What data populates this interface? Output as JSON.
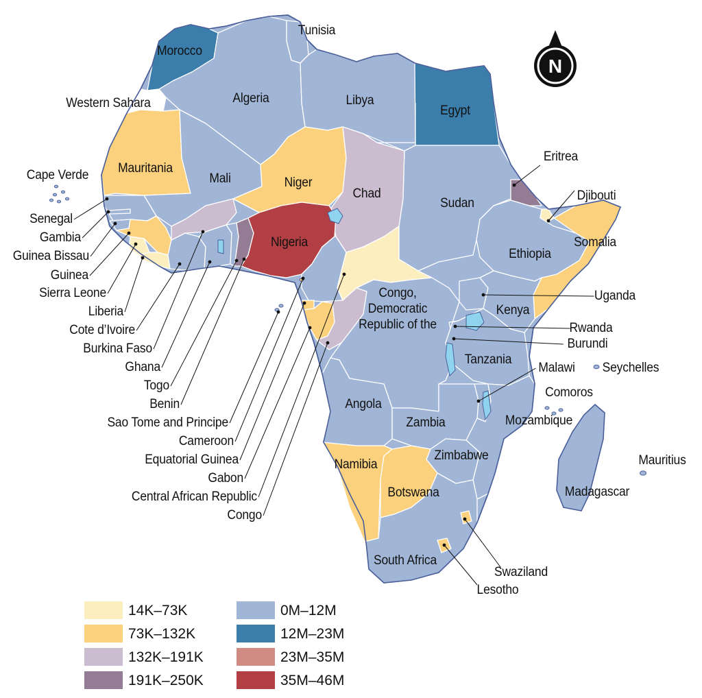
{
  "colors": {
    "ocean": "#ffffff",
    "border": "#ffffff",
    "coast": "#4a5f9a",
    "lake": "#8fd3ee",
    "leader": "#111111",
    "compass_ring": "#ffffff",
    "compass_fill": "#111111"
  },
  "compass": {
    "letter": "N",
    "icon": "north-arrow-icon"
  },
  "legend": {
    "items": [
      {
        "label": "14K–73K",
        "color": "#fdeec0"
      },
      {
        "label": "73K–132K",
        "color": "#fbd17e"
      },
      {
        "label": "132K–191K",
        "color": "#cbbcd0"
      },
      {
        "label": "191K–250K",
        "color": "#957c95"
      },
      {
        "label": "0M–12M",
        "color": "#a1b6d6"
      },
      {
        "label": "12M–23M",
        "color": "#3b7eab"
      },
      {
        "label": "23M–35M",
        "color": "#d08b83"
      },
      {
        "label": "35M–46M",
        "color": "#b13f43"
      }
    ]
  },
  "countries": [
    {
      "name": "Tunisia",
      "category": "0M–12M",
      "color": "#a1b6d6"
    },
    {
      "name": "Morocco",
      "category": "12M–23M",
      "color": "#3b7eab"
    },
    {
      "name": "Western Sahara",
      "category": "none",
      "color": "#ffffff"
    },
    {
      "name": "Algeria",
      "category": "0M–12M",
      "color": "#a1b6d6"
    },
    {
      "name": "Libya",
      "category": "0M–12M",
      "color": "#a1b6d6"
    },
    {
      "name": "Egypt",
      "category": "12M–23M",
      "color": "#3b7eab"
    },
    {
      "name": "Mauritania",
      "category": "73K–132K",
      "color": "#fbd17e"
    },
    {
      "name": "Mali",
      "category": "0M–12M",
      "color": "#a1b6d6"
    },
    {
      "name": "Niger",
      "category": "73K–132K",
      "color": "#fbd17e"
    },
    {
      "name": "Chad",
      "category": "132K–191K",
      "color": "#cbbcd0"
    },
    {
      "name": "Sudan",
      "category": "0M–12M",
      "color": "#a1b6d6"
    },
    {
      "name": "Eritrea",
      "category": "191K–250K",
      "color": "#957c95"
    },
    {
      "name": "Djibouti",
      "category": "14K–73K",
      "color": "#fdeec0"
    },
    {
      "name": "Somalia",
      "category": "73K–132K",
      "color": "#fbd17e"
    },
    {
      "name": "Ethiopia",
      "category": "0M–12M",
      "color": "#a1b6d6"
    },
    {
      "name": "Nigeria",
      "category": "35M–46M",
      "color": "#b13f43"
    },
    {
      "name": "Cape Verde",
      "category": "0M–12M",
      "color": "#a1b6d6"
    },
    {
      "name": "Senegal",
      "category": "0M–12M",
      "color": "#a1b6d6"
    },
    {
      "name": "Gambia",
      "category": "0M–12M",
      "color": "#a1b6d6"
    },
    {
      "name": "Guinea Bissau",
      "category": "0M–12M",
      "color": "#a1b6d6"
    },
    {
      "name": "Guinea",
      "category": "73K–132K",
      "color": "#fbd17e"
    },
    {
      "name": "Sierra Leone",
      "category": "14K–73K",
      "color": "#fdeec0"
    },
    {
      "name": "Liberia",
      "category": "14K–73K",
      "color": "#fdeec0"
    },
    {
      "name": "Cote d’Ivoire",
      "category": "0M–12M",
      "color": "#a1b6d6"
    },
    {
      "name": "Burkina Faso",
      "category": "132K–191K",
      "color": "#cbbcd0"
    },
    {
      "name": "Ghana",
      "category": "0M–12M",
      "color": "#a1b6d6"
    },
    {
      "name": "Togo",
      "category": "0M–12M",
      "color": "#a1b6d6"
    },
    {
      "name": "Benin",
      "category": "191K–250K",
      "color": "#957c95"
    },
    {
      "name": "Sao Tome and Principe",
      "category": "0M–12M",
      "color": "#a1b6d6"
    },
    {
      "name": "Cameroon",
      "category": "0M–12M",
      "color": "#a1b6d6"
    },
    {
      "name": "Equatorial Guinea",
      "category": "73K–132K",
      "color": "#fbd17e"
    },
    {
      "name": "Gabon",
      "category": "73K–132K",
      "color": "#fbd17e"
    },
    {
      "name": "Central African Republic",
      "category": "14K–73K",
      "color": "#fdeec0"
    },
    {
      "name": "Congo",
      "category": "132K–191K",
      "color": "#cbbcd0"
    },
    {
      "name": "Congo,\nDemocratic\nRepublic of the",
      "category": "0M–12M",
      "color": "#a1b6d6"
    },
    {
      "name": "Uganda",
      "category": "0M–12M",
      "color": "#a1b6d6"
    },
    {
      "name": "Kenya",
      "category": "0M–12M",
      "color": "#a1b6d6"
    },
    {
      "name": "Rwanda",
      "category": "0M–12M",
      "color": "#a1b6d6"
    },
    {
      "name": "Burundi",
      "category": "0M–12M",
      "color": "#a1b6d6"
    },
    {
      "name": "Tanzania",
      "category": "0M–12M",
      "color": "#a1b6d6"
    },
    {
      "name": "Malawi",
      "category": "0M–12M",
      "color": "#a1b6d6"
    },
    {
      "name": "Seychelles",
      "category": "0M–12M",
      "color": "#a1b6d6"
    },
    {
      "name": "Comoros",
      "category": "0M–12M",
      "color": "#a1b6d6"
    },
    {
      "name": "Angola",
      "category": "0M–12M",
      "color": "#a1b6d6"
    },
    {
      "name": "Zambia",
      "category": "0M–12M",
      "color": "#a1b6d6"
    },
    {
      "name": "Mozambique",
      "category": "0M–12M",
      "color": "#a1b6d6"
    },
    {
      "name": "Namibia",
      "category": "73K–132K",
      "color": "#fbd17e"
    },
    {
      "name": "Zimbabwe",
      "category": "0M–12M",
      "color": "#a1b6d6"
    },
    {
      "name": "Mauritius",
      "category": "0M–12M",
      "color": "#a1b6d6"
    },
    {
      "name": "Botswana",
      "category": "73K–132K",
      "color": "#fbd17e"
    },
    {
      "name": "Madagascar",
      "category": "0M–12M",
      "color": "#a1b6d6"
    },
    {
      "name": "South Africa",
      "category": "0M–12M",
      "color": "#a1b6d6"
    },
    {
      "name": "Swaziland",
      "category": "73K–132K",
      "color": "#fbd17e"
    },
    {
      "name": "Lesotho",
      "category": "73K–132K",
      "color": "#fbd17e"
    }
  ]
}
